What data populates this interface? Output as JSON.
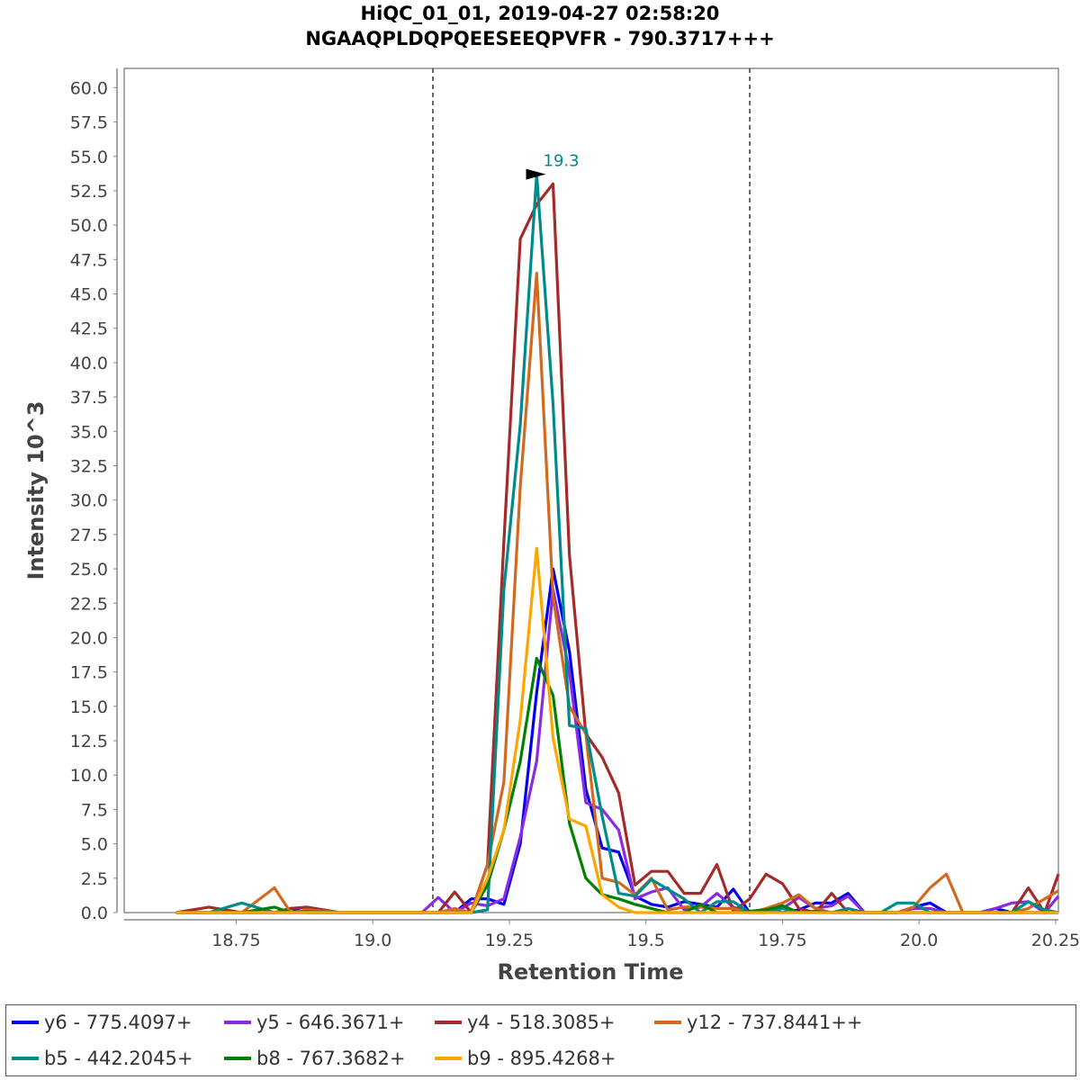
{
  "chart_data": {
    "type": "line",
    "title": "HiQC_01_01, 2019-04-27 02:58:20",
    "subtitle": "NGAAQPLDQPQEESEEQPVFR - 790.3717+++",
    "xlabel": "Retention Time",
    "ylabel": "Intensity 10^3",
    "xlim": [
      18.545,
      20.255
    ],
    "ylim": [
      0,
      61.4
    ],
    "x_ticks": [
      "18.75",
      "19.0",
      "19.25",
      "19.5",
      "19.75",
      "20.0",
      "20.25"
    ],
    "y_ticks": [
      "0.0",
      "2.5",
      "5.0",
      "7.5",
      "10.0",
      "12.5",
      "15.0",
      "17.5",
      "20.0",
      "22.5",
      "25.0",
      "27.5",
      "30.0",
      "32.5",
      "35.0",
      "37.5",
      "40.0",
      "42.5",
      "45.0",
      "47.5",
      "50.0",
      "52.5",
      "55.0",
      "57.5",
      "60.0"
    ],
    "boundaries": [
      19.11,
      19.69
    ],
    "peak_annotation": {
      "x": 19.33,
      "y": 53.7,
      "label": "19.3",
      "color": "#008b8b"
    },
    "legend_position": "bottom",
    "series": [
      {
        "name": "y6 - 775.4097+",
        "color": "#0000ee",
        "x": [
          18.64,
          18.7,
          18.76,
          18.82,
          18.85,
          18.88,
          18.94,
          19.0,
          19.06,
          19.09,
          19.12,
          19.15,
          19.18,
          19.21,
          19.24,
          19.27,
          19.3,
          19.33,
          19.36,
          19.39,
          19.42,
          19.45,
          19.48,
          19.51,
          19.54,
          19.57,
          19.6,
          19.63,
          19.66,
          19.69,
          19.72,
          19.75,
          19.78,
          19.81,
          19.84,
          19.87,
          19.9,
          19.93,
          19.96,
          19.99,
          20.02,
          20.05,
          20.08,
          20.11,
          20.14,
          20.17,
          20.2,
          20.23,
          20.255
        ],
        "y": [
          0,
          0,
          0,
          0,
          0.3,
          0,
          0,
          0,
          0,
          0,
          0,
          0,
          1.0,
          1.0,
          0.6,
          5.0,
          16.0,
          25.0,
          19.0,
          9.0,
          4.7,
          4.4,
          1.2,
          0.6,
          0.4,
          0.8,
          0.6,
          0.4,
          1.7,
          0,
          0.2,
          0,
          0.2,
          0.7,
          0.7,
          1.4,
          0,
          0,
          0,
          0.4,
          0.7,
          0,
          0,
          0,
          0.3,
          0,
          0,
          0,
          0
        ]
      },
      {
        "name": "y5 - 646.3671+",
        "color": "#8a2be2",
        "x": [
          18.64,
          18.7,
          18.76,
          18.82,
          18.85,
          18.88,
          18.94,
          19.0,
          19.06,
          19.09,
          19.12,
          19.15,
          19.18,
          19.21,
          19.24,
          19.27,
          19.3,
          19.33,
          19.36,
          19.39,
          19.42,
          19.45,
          19.48,
          19.51,
          19.54,
          19.57,
          19.6,
          19.63,
          19.66,
          19.69,
          19.72,
          19.75,
          19.78,
          19.81,
          19.84,
          19.87,
          19.9,
          19.93,
          19.96,
          19.99,
          20.02,
          20.05,
          20.08,
          20.11,
          20.14,
          20.17,
          20.2,
          20.23,
          20.255
        ],
        "y": [
          0,
          0,
          0,
          0,
          0,
          0,
          0,
          0,
          0,
          0,
          1.1,
          0,
          0.7,
          0.5,
          1.0,
          5.5,
          11.0,
          23.5,
          17.5,
          8.0,
          7.5,
          6.0,
          1.0,
          1.5,
          1.8,
          0.2,
          0.4,
          1.4,
          0.4,
          0,
          0.1,
          0.3,
          1.1,
          0.3,
          0.5,
          1.2,
          0,
          0,
          0,
          0.3,
          0.3,
          0,
          0,
          0,
          0.3,
          0.7,
          0.8,
          0,
          1.2
        ]
      },
      {
        "name": "y4 - 518.3085+",
        "color": "#a52a2a",
        "x": [
          18.64,
          18.7,
          18.76,
          18.82,
          18.85,
          18.88,
          18.94,
          19.0,
          19.06,
          19.09,
          19.12,
          19.15,
          19.18,
          19.21,
          19.24,
          19.27,
          19.3,
          19.33,
          19.36,
          19.39,
          19.42,
          19.45,
          19.48,
          19.51,
          19.54,
          19.57,
          19.6,
          19.63,
          19.66,
          19.69,
          19.72,
          19.75,
          19.78,
          19.81,
          19.84,
          19.87,
          19.9,
          19.93,
          19.96,
          19.99,
          20.02,
          20.05,
          20.08,
          20.11,
          20.14,
          20.17,
          20.2,
          20.23,
          20.255
        ],
        "y": [
          0,
          0.4,
          0,
          0,
          0.3,
          0.4,
          0,
          0,
          0,
          0,
          0,
          1.5,
          0,
          3.5,
          27.0,
          49.0,
          51.5,
          53.0,
          26.0,
          13.0,
          11.3,
          8.7,
          2.0,
          3.0,
          3.0,
          1.4,
          1.4,
          3.5,
          0.1,
          1.0,
          2.8,
          2.1,
          0.3,
          0,
          1.4,
          0,
          0,
          0,
          0,
          0,
          0,
          0,
          0,
          0,
          0,
          0,
          1.8,
          0,
          2.8
        ]
      },
      {
        "name": "y12 - 737.8441++",
        "color": "#d2691e",
        "x": [
          18.64,
          18.7,
          18.76,
          18.82,
          18.85,
          18.88,
          18.94,
          19.0,
          19.06,
          19.09,
          19.12,
          19.15,
          19.18,
          19.21,
          19.24,
          19.27,
          19.3,
          19.33,
          19.36,
          19.39,
          19.42,
          19.45,
          19.48,
          19.51,
          19.54,
          19.57,
          19.6,
          19.63,
          19.66,
          19.69,
          19.72,
          19.75,
          19.78,
          19.81,
          19.84,
          19.87,
          19.9,
          19.93,
          19.96,
          19.99,
          20.02,
          20.05,
          20.08,
          20.11,
          20.14,
          20.17,
          20.2,
          20.23,
          20.255
        ],
        "y": [
          0,
          0,
          0,
          1.8,
          0,
          0.2,
          0,
          0,
          0,
          0,
          0,
          0.3,
          0,
          3.5,
          9.5,
          31.0,
          46.5,
          23.0,
          15.0,
          13.0,
          2.5,
          2.2,
          1.3,
          2.5,
          0.2,
          0.4,
          0.4,
          0.3,
          0.3,
          0,
          0.3,
          0.7,
          1.3,
          0.3,
          0,
          0,
          0,
          0,
          0,
          0.4,
          1.8,
          2.8,
          0,
          0,
          0,
          0,
          0.3,
          1.0,
          1.6
        ]
      },
      {
        "name": "b5 - 442.2045+",
        "color": "#008b8b",
        "x": [
          18.64,
          18.7,
          18.76,
          18.82,
          18.85,
          18.88,
          18.94,
          19.0,
          19.06,
          19.09,
          19.12,
          19.15,
          19.18,
          19.21,
          19.24,
          19.27,
          19.3,
          19.33,
          19.36,
          19.39,
          19.42,
          19.45,
          19.48,
          19.51,
          19.54,
          19.57,
          19.6,
          19.63,
          19.66,
          19.69,
          19.72,
          19.75,
          19.78,
          19.81,
          19.84,
          19.87,
          19.9,
          19.93,
          19.96,
          19.99,
          20.02,
          20.05,
          20.08,
          20.11,
          20.14,
          20.17,
          20.2,
          20.23,
          20.255
        ],
        "y": [
          0,
          0,
          0.7,
          0,
          0,
          0.1,
          0,
          0,
          0,
          0,
          0,
          0,
          0,
          0.2,
          23.5,
          35.5,
          53.7,
          37.0,
          13.6,
          13.4,
          7.0,
          1.4,
          1.2,
          2.4,
          1.7,
          1.0,
          0,
          0.8,
          0.8,
          0,
          0,
          0.3,
          0,
          0,
          0,
          0.3,
          0,
          0,
          0.7,
          0.7,
          0,
          0,
          0,
          0,
          0,
          0,
          0.8,
          0.2,
          0
        ]
      },
      {
        "name": "b8 - 767.3682+",
        "color": "#008000",
        "x": [
          18.64,
          18.7,
          18.76,
          18.82,
          18.85,
          18.88,
          18.94,
          19.0,
          19.06,
          19.09,
          19.12,
          19.15,
          19.18,
          19.21,
          19.24,
          19.27,
          19.3,
          19.33,
          19.36,
          19.39,
          19.42,
          19.45,
          19.48,
          19.51,
          19.54,
          19.57,
          19.6,
          19.63,
          19.66,
          19.69,
          19.72,
          19.75,
          19.78,
          19.81,
          19.84,
          19.87,
          19.9,
          19.93,
          19.96,
          19.99,
          20.02,
          20.05,
          20.08,
          20.11,
          20.14,
          20.17,
          20.2,
          20.23,
          20.255
        ],
        "y": [
          0,
          0,
          0,
          0.4,
          0,
          0,
          0,
          0,
          0,
          0,
          0,
          0,
          0,
          2.0,
          6.0,
          11.0,
          18.5,
          15.8,
          6.5,
          2.5,
          1.3,
          1.0,
          0.6,
          0.3,
          0,
          0,
          0.6,
          0,
          0,
          0.1,
          0.2,
          0.5,
          0,
          0.1,
          0,
          0,
          0,
          0,
          0,
          0,
          0,
          0,
          0,
          0,
          0,
          0,
          0,
          0,
          0
        ]
      },
      {
        "name": "b9 - 895.4268+",
        "color": "#ffa500",
        "x": [
          18.64,
          18.7,
          18.76,
          18.82,
          18.85,
          18.88,
          18.94,
          19.0,
          19.06,
          19.09,
          19.12,
          19.15,
          19.18,
          19.21,
          19.24,
          19.27,
          19.3,
          19.33,
          19.36,
          19.39,
          19.42,
          19.45,
          19.48,
          19.51,
          19.54,
          19.57,
          19.6,
          19.63,
          19.66,
          19.69,
          19.72,
          19.75,
          19.78,
          19.81,
          19.84,
          19.87,
          19.9,
          19.93,
          19.96,
          19.99,
          20.02,
          20.05,
          20.08,
          20.11,
          20.14,
          20.17,
          20.2,
          20.23,
          20.255
        ],
        "y": [
          0,
          0,
          0,
          0,
          0,
          0,
          0,
          0,
          0,
          0,
          0,
          0,
          0,
          2.5,
          6.0,
          14.0,
          26.5,
          12.7,
          6.8,
          6.3,
          1.3,
          0.4,
          0,
          0,
          0,
          0,
          0,
          0,
          0,
          0,
          0,
          0,
          0,
          0,
          0,
          0,
          0,
          0,
          0,
          0,
          0,
          0,
          0,
          0,
          0,
          0,
          0,
          0,
          0
        ]
      }
    ]
  }
}
